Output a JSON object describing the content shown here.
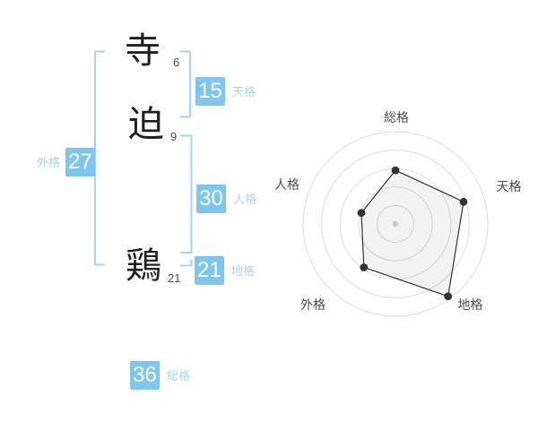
{
  "name_diagram": {
    "characters": [
      {
        "char": "寺",
        "strokes": "6"
      },
      {
        "char": "迫",
        "strokes": "9"
      },
      {
        "char": "鶏",
        "strokes": "21"
      }
    ],
    "kaku": {
      "tenkaku": {
        "value": "15",
        "label": "天格"
      },
      "jinkaku": {
        "value": "30",
        "label": "人格"
      },
      "chikaku": {
        "value": "21",
        "label": "地格"
      },
      "gaikaku": {
        "value": "27",
        "label": "外格"
      },
      "soukaku": {
        "value": "36",
        "label": "総格"
      }
    },
    "colors": {
      "box_blue": "#7dc6ef",
      "label_blue": "#a3d6f3",
      "bracket_blue": "#a5d3f0"
    }
  },
  "chart_data": {
    "type": "radar",
    "axes": [
      "総格",
      "天格",
      "地格",
      "外格",
      "人格"
    ],
    "values": [
      3,
      4,
      5,
      3,
      2
    ],
    "max": 5,
    "rings": 5,
    "grid": true,
    "legend": false,
    "start_angle_deg": -90,
    "direction": "clockwise",
    "colors": {
      "ring": "#dcdcdc",
      "line": "#333333",
      "point": "#333333",
      "fill": "rgba(0,0,0,0.05)",
      "center_dot": "#c6c6c6",
      "label": "#4d4d4d"
    }
  }
}
